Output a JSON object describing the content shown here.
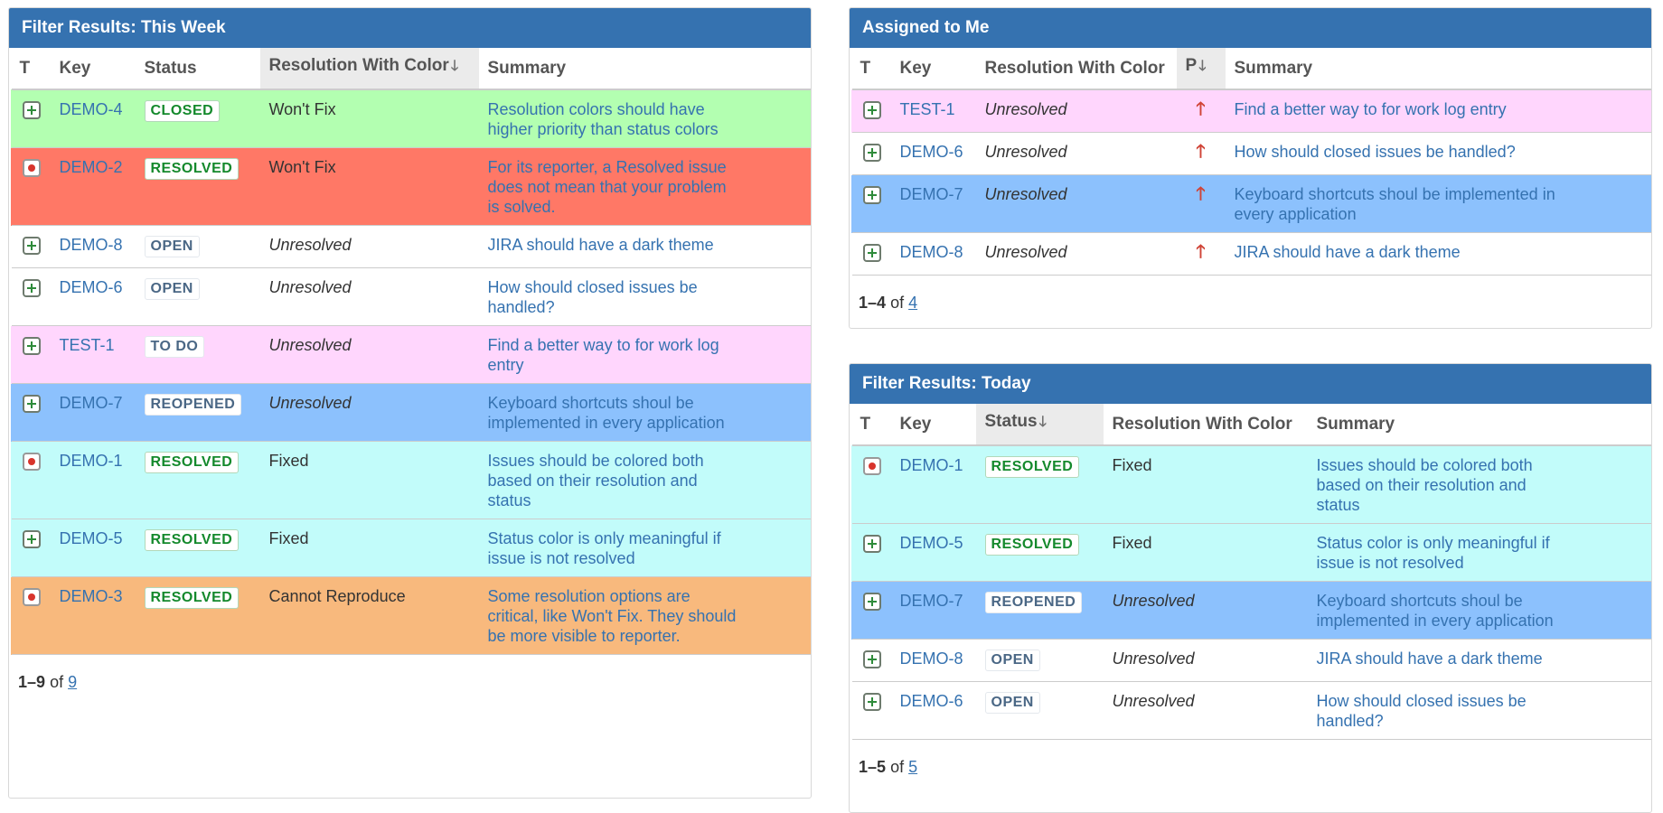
{
  "gadgets": {
    "week": {
      "title": "Filter Results: This Week",
      "columns": {
        "t": "T",
        "key": "Key",
        "status": "Status",
        "resolution": "Resolution With Color",
        "summary": "Summary"
      },
      "sort_arrow": "🡓",
      "rows": [
        {
          "key": "DEMO-4",
          "status": "CLOSED",
          "resolution": "Won't Fix",
          "summary": "Resolution colors should have higher priority than status colors",
          "type": "improvement-icon",
          "bg": "#b3ffb1"
        },
        {
          "key": "DEMO-2",
          "status": "RESOLVED",
          "resolution": "Won't Fix",
          "summary": "For its reporter, a Resolved issue does not mean that your problem is solved.",
          "type": "bug-icon",
          "bg": "#ff7866"
        },
        {
          "key": "DEMO-8",
          "status": "OPEN",
          "resolution": "Unresolved",
          "summary": "JIRA should have a dark theme",
          "type": "improvement-icon",
          "bg": "#ffffff"
        },
        {
          "key": "DEMO-6",
          "status": "OPEN",
          "resolution": "Unresolved",
          "summary": "How should closed issues be handled?",
          "type": "improvement-icon",
          "bg": "#ffffff"
        },
        {
          "key": "TEST-1",
          "status": "TO DO",
          "resolution": "Unresolved",
          "summary": "Find a better way to for work log entry",
          "type": "improvement-icon",
          "bg": "#ffd6fd"
        },
        {
          "key": "DEMO-7",
          "status": "REOPENED",
          "resolution": "Unresolved",
          "summary": "Keyboard shortcuts shoul be implemented in every application",
          "type": "improvement-icon",
          "bg": "#8cc1fd"
        },
        {
          "key": "DEMO-1",
          "status": "RESOLVED",
          "resolution": "Fixed",
          "summary": "Issues should be colored both based on their resolution and status",
          "type": "bug-icon",
          "bg": "#c2fcfa"
        },
        {
          "key": "DEMO-5",
          "status": "RESOLVED",
          "resolution": "Fixed",
          "summary": "Status color is only meaningful if issue is not resolved",
          "type": "improvement-icon",
          "bg": "#c2fcfa"
        },
        {
          "key": "DEMO-3",
          "status": "RESOLVED",
          "resolution": "Cannot Reproduce",
          "summary": "Some resolution options are critical, like Won't Fix. They should be more visible to reporter.",
          "type": "bug-icon",
          "bg": "#f8b97d"
        }
      ],
      "pager": {
        "range": "1–9",
        "of": "of",
        "total": "9"
      }
    },
    "assigned": {
      "title": "Assigned to Me",
      "columns": {
        "t": "T",
        "key": "Key",
        "resolution": "Resolution With Color",
        "p": "P",
        "summary": "Summary"
      },
      "sort_arrow": "🡓",
      "priority_glyph": "🡑",
      "rows": [
        {
          "key": "TEST-1",
          "resolution": "Unresolved",
          "summary": "Find a better way to for work log entry",
          "type": "improvement-icon",
          "bg": "#ffd6fd"
        },
        {
          "key": "DEMO-6",
          "resolution": "Unresolved",
          "summary": "How should closed issues be handled?",
          "type": "improvement-icon",
          "bg": "#ffffff"
        },
        {
          "key": "DEMO-7",
          "resolution": "Unresolved",
          "summary": "Keyboard shortcuts shoul be implemented in every application",
          "type": "improvement-icon",
          "bg": "#8cc1fd"
        },
        {
          "key": "DEMO-8",
          "resolution": "Unresolved",
          "summary": "JIRA should have a dark theme",
          "type": "improvement-icon",
          "bg": "#ffffff"
        }
      ],
      "pager": {
        "range": "1–4",
        "of": "of",
        "total": "4"
      }
    },
    "today": {
      "title": "Filter Results: Today",
      "columns": {
        "t": "T",
        "key": "Key",
        "status": "Status",
        "resolution": "Resolution With Color",
        "summary": "Summary"
      },
      "sort_arrow": "🡓",
      "rows": [
        {
          "key": "DEMO-1",
          "status": "RESOLVED",
          "resolution": "Fixed",
          "summary": "Issues should be colored both based on their resolution and status",
          "type": "bug-icon",
          "bg": "#c2fcfa"
        },
        {
          "key": "DEMO-5",
          "status": "RESOLVED",
          "resolution": "Fixed",
          "summary": "Status color is only meaningful if issue is not resolved",
          "type": "improvement-icon",
          "bg": "#c2fcfa"
        },
        {
          "key": "DEMO-7",
          "status": "REOPENED",
          "resolution": "Unresolved",
          "summary": "Keyboard shortcuts shoul be implemented in every application",
          "type": "improvement-icon",
          "bg": "#8cc1fd"
        },
        {
          "key": "DEMO-8",
          "status": "OPEN",
          "resolution": "Unresolved",
          "summary": "JIRA should have a dark theme",
          "type": "improvement-icon",
          "bg": "#ffffff"
        },
        {
          "key": "DEMO-6",
          "status": "OPEN",
          "resolution": "Unresolved",
          "summary": "How should closed issues be handled?",
          "type": "improvement-icon",
          "bg": "#ffffff"
        }
      ],
      "pager": {
        "range": "1–5",
        "of": "of",
        "total": "5"
      }
    }
  },
  "colors": {
    "header": "#3572b0",
    "link": "#3572b0",
    "success_lozenge": "#14892c",
    "default_lozenge": "#4a6785",
    "priority": "#d04437"
  }
}
